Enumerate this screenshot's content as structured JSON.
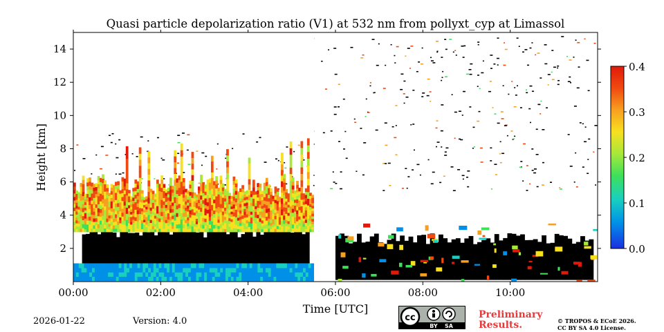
{
  "footer": {
    "date": "2026-01-22",
    "version": "Version: 4.0",
    "license_badge": {
      "line1": "cc",
      "by": "BY",
      "sa": "SA"
    },
    "prelim_line1": "Preliminary",
    "prelim_line2": "Results.",
    "copyright_line1": "© TROPOS & ECoE 2026.",
    "copyright_line2": "CC BY SA 4.0 License."
  },
  "colors": {
    "cloud_mask": "#000000",
    "prelim_red": "#e83a3a",
    "colormap": [
      "#1a2fe0",
      "#0090e8",
      "#19d0c0",
      "#3ee05a",
      "#a8e83a",
      "#f7e020",
      "#f7a020",
      "#f04a10",
      "#e01a0a"
    ]
  },
  "chart_data": {
    "type": "heatmap",
    "title": "Quasi particle depolarization ratio (V1) at 532 nm from pollyxt_cyp at Limassol",
    "xlabel": "Time [UTC]",
    "ylabel": "Height [km]",
    "xlim": [
      0,
      12
    ],
    "ylim": [
      0,
      15
    ],
    "xticks": [
      {
        "value": 0,
        "label": "00:00"
      },
      {
        "value": 2,
        "label": "02:00"
      },
      {
        "value": 4,
        "label": "04:00"
      },
      {
        "value": 6,
        "label": "06:00"
      },
      {
        "value": 8,
        "label": "08:00"
      },
      {
        "value": 10,
        "label": "10:00"
      }
    ],
    "yticks": [
      {
        "value": 2,
        "label": "2"
      },
      {
        "value": 4,
        "label": "4"
      },
      {
        "value": 6,
        "label": "6"
      },
      {
        "value": 8,
        "label": "8"
      },
      {
        "value": 10,
        "label": "10"
      },
      {
        "value": 12,
        "label": "12"
      },
      {
        "value": 14,
        "label": "14"
      }
    ],
    "colorbar": {
      "range": [
        0.0,
        0.4
      ],
      "ticks": [
        {
          "value": 0.0,
          "label": "0.0"
        },
        {
          "value": 0.1,
          "label": "0.1"
        },
        {
          "value": 0.2,
          "label": "0.2"
        },
        {
          "value": 0.3,
          "label": "0.3"
        },
        {
          "value": 0.4,
          "label": "0.4"
        }
      ]
    },
    "fields": {
      "boundary_layer": {
        "t_start": 0,
        "t_end": 5.5,
        "h_bottom": 0.05,
        "h_top": 1.1,
        "value": 0.08
      },
      "black_mask_segments": [
        {
          "t_start": 0.2,
          "t_end": 5.4,
          "h_bottom": 1.1,
          "h_top": 3.0
        },
        {
          "t_start": 6.0,
          "t_end": 11.9,
          "h_bottom": 0.1,
          "h_top": 2.6
        }
      ],
      "aerosol_layer": {
        "t_start": 0,
        "t_end": 5.5,
        "h_bottom": 3.0,
        "h_top": 5.5,
        "value_low": 0.12,
        "value_high": 0.37
      },
      "noise_region": {
        "t_start": 0,
        "t_end": 12,
        "h_bottom": 5.5,
        "h_top": 14.8
      },
      "data_gap": {
        "t_start": 5.52,
        "t_end": 5.67
      }
    }
  }
}
